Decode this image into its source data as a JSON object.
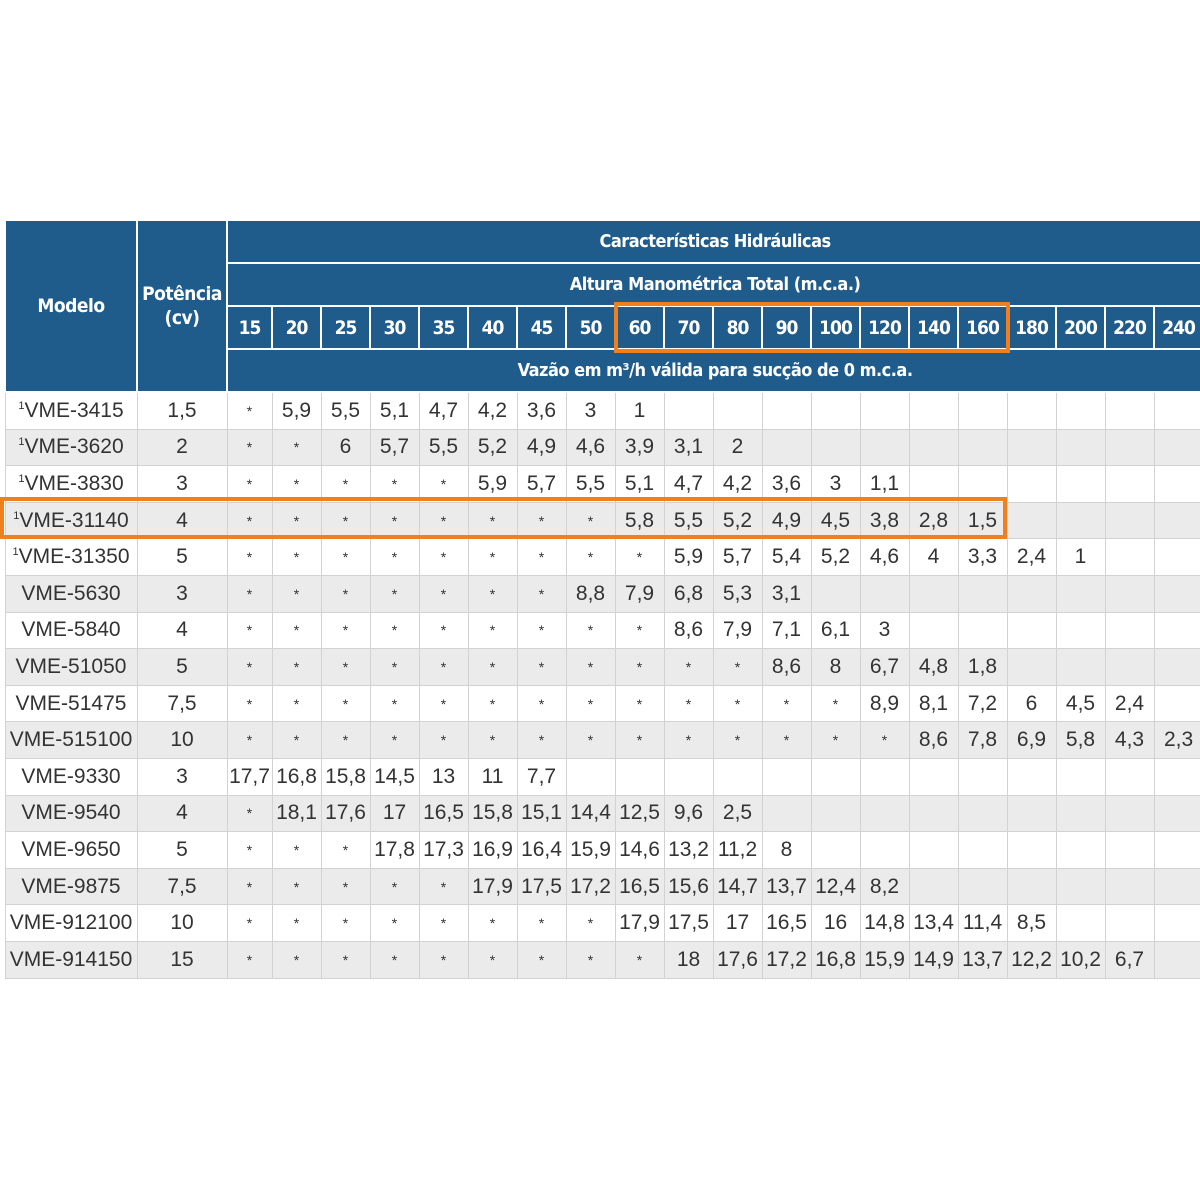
{
  "header": {
    "model_label": "Modelo",
    "power_label": "Potência\n(cv)",
    "group_title": "Características Hidráulicas",
    "head_title": "Altura Manométrica Total (m.c.a.)",
    "flow_title": "Vazão em m³/h válida para sucção de 0 m.c.a."
  },
  "columns": [
    "15",
    "20",
    "25",
    "30",
    "35",
    "40",
    "45",
    "50",
    "60",
    "70",
    "80",
    "90",
    "100",
    "120",
    "140",
    "160",
    "180",
    "200",
    "220",
    "240"
  ],
  "rows": [
    {
      "sup": "1",
      "model": "VME-3415",
      "power": "1,5",
      "values": [
        "*",
        "5,9",
        "5,5",
        "5,1",
        "4,7",
        "4,2",
        "3,6",
        "3",
        "1",
        "",
        "",
        "",
        "",
        "",
        "",
        "",
        "",
        "",
        "",
        ""
      ]
    },
    {
      "sup": "1",
      "model": "VME-3620",
      "power": "2",
      "values": [
        "*",
        "*",
        "6",
        "5,7",
        "5,5",
        "5,2",
        "4,9",
        "4,6",
        "3,9",
        "3,1",
        "2",
        "",
        "",
        "",
        "",
        "",
        "",
        "",
        "",
        ""
      ]
    },
    {
      "sup": "1",
      "model": "VME-3830",
      "power": "3",
      "values": [
        "*",
        "*",
        "*",
        "*",
        "*",
        "5,9",
        "5,7",
        "5,5",
        "5,1",
        "4,7",
        "4,2",
        "3,6",
        "3",
        "1,1",
        "",
        "",
        "",
        "",
        "",
        ""
      ]
    },
    {
      "sup": "1",
      "model": "VME-31140",
      "power": "4",
      "values": [
        "*",
        "*",
        "*",
        "*",
        "*",
        "*",
        "*",
        "*",
        "5,8",
        "5,5",
        "5,2",
        "4,9",
        "4,5",
        "3,8",
        "2,8",
        "1,5",
        "",
        "",
        "",
        ""
      ]
    },
    {
      "sup": "1",
      "model": "VME-31350",
      "power": "5",
      "values": [
        "*",
        "*",
        "*",
        "*",
        "*",
        "*",
        "*",
        "*",
        "*",
        "5,9",
        "5,7",
        "5,4",
        "5,2",
        "4,6",
        "4",
        "3,3",
        "2,4",
        "1",
        "",
        ""
      ]
    },
    {
      "sup": "",
      "model": "VME-5630",
      "power": "3",
      "values": [
        "*",
        "*",
        "*",
        "*",
        "*",
        "*",
        "*",
        "8,8",
        "7,9",
        "6,8",
        "5,3",
        "3,1",
        "",
        "",
        "",
        "",
        "",
        "",
        "",
        ""
      ]
    },
    {
      "sup": "",
      "model": "VME-5840",
      "power": "4",
      "values": [
        "*",
        "*",
        "*",
        "*",
        "*",
        "*",
        "*",
        "*",
        "*",
        "8,6",
        "7,9",
        "7,1",
        "6,1",
        "3",
        "",
        "",
        "",
        "",
        "",
        ""
      ]
    },
    {
      "sup": "",
      "model": "VME-51050",
      "power": "5",
      "values": [
        "*",
        "*",
        "*",
        "*",
        "*",
        "*",
        "*",
        "*",
        "*",
        "*",
        "*",
        "8,6",
        "8",
        "6,7",
        "4,8",
        "1,8",
        "",
        "",
        "",
        ""
      ]
    },
    {
      "sup": "",
      "model": "VME-51475",
      "power": "7,5",
      "values": [
        "*",
        "*",
        "*",
        "*",
        "*",
        "*",
        "*",
        "*",
        "*",
        "*",
        "*",
        "*",
        "*",
        "8,9",
        "8,1",
        "7,2",
        "6",
        "4,5",
        "2,4",
        ""
      ]
    },
    {
      "sup": "",
      "model": "VME-515100",
      "power": "10",
      "values": [
        "*",
        "*",
        "*",
        "*",
        "*",
        "*",
        "*",
        "*",
        "*",
        "*",
        "*",
        "*",
        "*",
        "*",
        "8,6",
        "7,8",
        "6,9",
        "5,8",
        "4,3",
        "2,3"
      ]
    },
    {
      "sup": "",
      "model": "VME-9330",
      "power": "3",
      "values": [
        "17,7",
        "16,8",
        "15,8",
        "14,5",
        "13",
        "11",
        "7,7",
        "",
        "",
        "",
        "",
        "",
        "",
        "",
        "",
        "",
        "",
        "",
        "",
        ""
      ]
    },
    {
      "sup": "",
      "model": "VME-9540",
      "power": "4",
      "values": [
        "*",
        "18,1",
        "17,6",
        "17",
        "16,5",
        "15,8",
        "15,1",
        "14,4",
        "12,5",
        "9,6",
        "2,5",
        "",
        "",
        "",
        "",
        "",
        "",
        "",
        "",
        ""
      ]
    },
    {
      "sup": "",
      "model": "VME-9650",
      "power": "5",
      "values": [
        "*",
        "*",
        "*",
        "17,8",
        "17,3",
        "16,9",
        "16,4",
        "15,9",
        "14,6",
        "13,2",
        "11,2",
        "8",
        "",
        "",
        "",
        "",
        "",
        "",
        "",
        ""
      ]
    },
    {
      "sup": "",
      "model": "VME-9875",
      "power": "7,5",
      "values": [
        "*",
        "*",
        "*",
        "*",
        "*",
        "17,9",
        "17,5",
        "17,2",
        "16,5",
        "15,6",
        "14,7",
        "13,7",
        "12,4",
        "8,2",
        "",
        "",
        "",
        "",
        "",
        ""
      ]
    },
    {
      "sup": "",
      "model": "VME-912100",
      "power": "10",
      "values": [
        "*",
        "*",
        "*",
        "*",
        "*",
        "*",
        "*",
        "*",
        "17,9",
        "17,5",
        "17",
        "16,5",
        "16",
        "14,8",
        "13,4",
        "11,4",
        "8,5",
        "",
        "",
        ""
      ]
    },
    {
      "sup": "",
      "model": "VME-914150",
      "power": "15",
      "values": [
        "*",
        "*",
        "*",
        "*",
        "*",
        "*",
        "*",
        "*",
        "*",
        "18",
        "17,6",
        "17,2",
        "16,8",
        "15,9",
        "14,9",
        "13,7",
        "12,2",
        "10,2",
        "6,7",
        ""
      ]
    }
  ],
  "highlights": {
    "columns": [
      "60",
      "70",
      "80",
      "90",
      "100",
      "120",
      "140",
      "160"
    ],
    "row_model": "VME-31140",
    "color": "#f07f1e"
  },
  "colors": {
    "header_bg": "#1f5c8b",
    "row_alt_bg": "#ebebeb"
  }
}
